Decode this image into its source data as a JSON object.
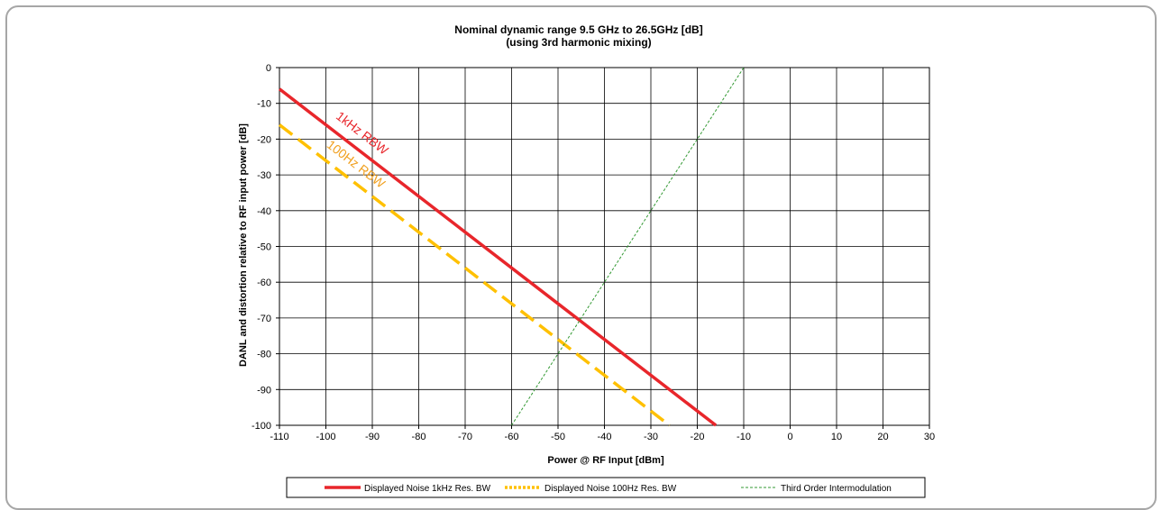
{
  "chart_data": {
    "type": "line",
    "title": "Nominal dynamic range 9.5 GHz to 26.5GHz [dB]",
    "subtitle": "(using 3rd harmonic mixing)",
    "xlabel": "Power @ RF Input [dBm]",
    "ylabel": "DANL  and distortion relative to RF  input power [dB]",
    "xlim": [
      -110,
      30
    ],
    "ylim": [
      -100,
      0
    ],
    "x_ticks": [
      -110,
      -100,
      -90,
      -80,
      -70,
      -60,
      -50,
      -40,
      -30,
      -20,
      -10,
      0,
      10,
      20,
      30
    ],
    "y_ticks": [
      0,
      -10,
      -20,
      -30,
      -40,
      -50,
      -60,
      -70,
      -80,
      -90,
      -100
    ],
    "grid": true,
    "legend_position": "bottom",
    "series": [
      {
        "name": "Displayed Noise 1kHz Res. BW",
        "color": "#e8262b",
        "style": "solid",
        "x": [
          -110,
          -16
        ],
        "y": [
          -6,
          -100
        ]
      },
      {
        "name": "Displayed Noise 100Hz Res. BW",
        "color": "#ffc000",
        "style": "dashed",
        "x": [
          -110,
          -26
        ],
        "y": [
          -16,
          -100
        ]
      },
      {
        "name": "Third Order Intermodulation",
        "color": "#339933",
        "style": "dotted",
        "x": [
          -60,
          -10
        ],
        "y": [
          -100,
          0
        ]
      }
    ],
    "annotations": [
      {
        "text": "1kHz RBW",
        "color": "#e8262b",
        "x": -98,
        "y": -14
      },
      {
        "text": "100Hz RBW",
        "color": "#f0a020",
        "x": -100,
        "y": -22
      }
    ]
  }
}
